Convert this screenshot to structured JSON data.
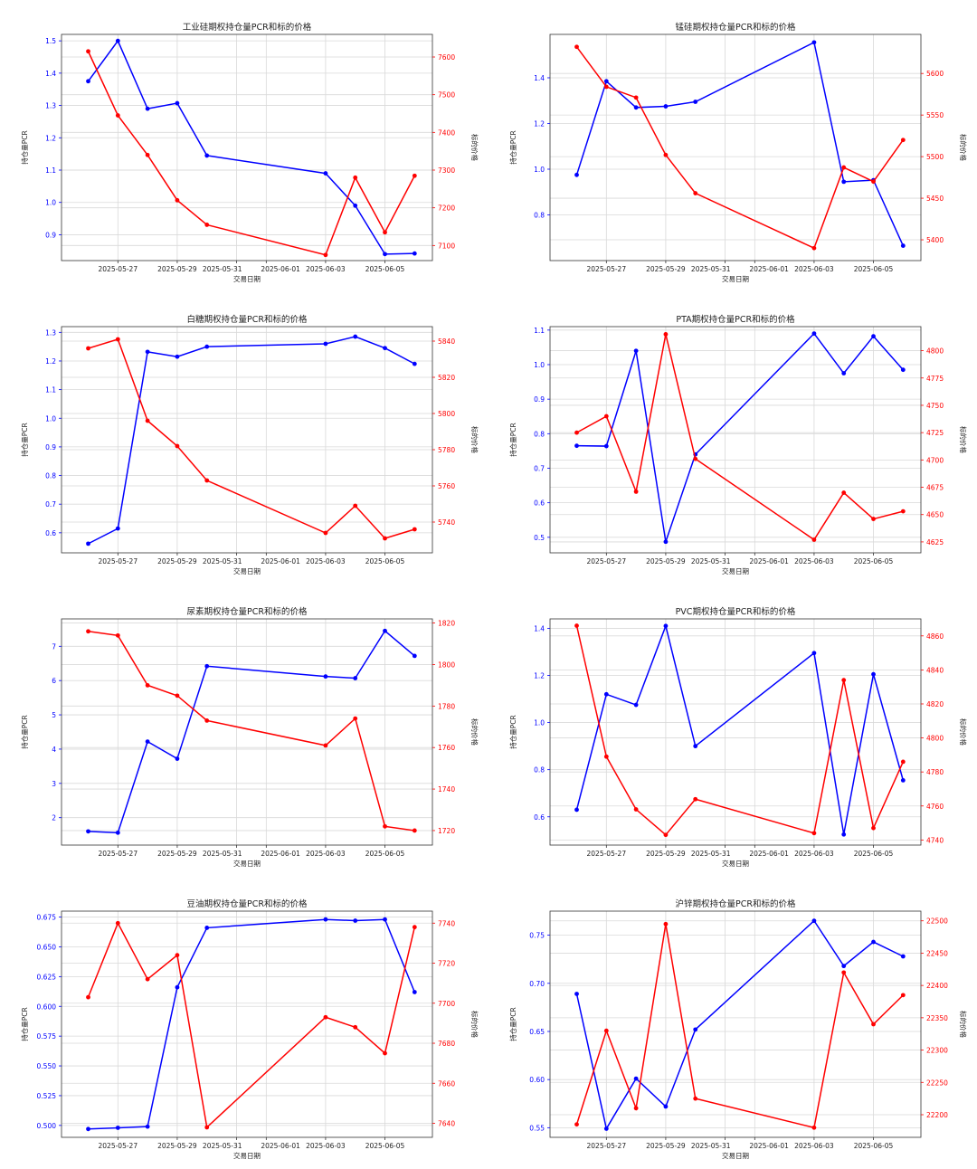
{
  "colors": {
    "pcr": "#0000ff",
    "price": "#ff0000",
    "grid": "#d9d9d9",
    "axis": "#333333"
  },
  "chart_data": [
    {
      "type": "line",
      "title": "工业硅期权持仓量PCR和标的价格",
      "xlabel": "交易日期",
      "ylabel_left": "持仓量PCR",
      "ylabel_right": "标的价格",
      "x": [
        "2025-05-26",
        "2025-05-27",
        "2025-05-28",
        "2025-05-29",
        "2025-05-30",
        "2025-06-03",
        "2025-06-04",
        "2025-06-05",
        "2025-06-06"
      ],
      "x_ticks": [
        "2025-05-27",
        "2025-05-29",
        "2025-05-31",
        "2025-06-01",
        "2025-06-03",
        "2025-06-05"
      ],
      "left_ticks": [
        "0.9",
        "1.0",
        "1.1",
        "1.2",
        "1.3",
        "1.4",
        "1.5"
      ],
      "right_ticks": [
        "7100",
        "7200",
        "7300",
        "7400",
        "7500",
        "7600"
      ],
      "ylim_left": [
        0.82,
        1.52
      ],
      "ylim_right": [
        7060,
        7660
      ],
      "series": [
        {
          "axis": "left",
          "values": [
            1.375,
            1.5,
            1.29,
            1.307,
            1.145,
            1.09,
            0.99,
            0.84,
            0.842
          ]
        },
        {
          "axis": "right",
          "values": [
            7615,
            7445,
            7340,
            7220,
            7155,
            7075,
            7280,
            7135,
            7285
          ]
        }
      ],
      "grid": true
    },
    {
      "type": "line",
      "title": "锰硅期权持仓量PCR和标的价格",
      "xlabel": "交易日期",
      "ylabel_left": "持仓量PCR",
      "ylabel_right": "标的价格",
      "x": [
        "2025-05-26",
        "2025-05-27",
        "2025-05-28",
        "2025-05-29",
        "2025-05-30",
        "2025-06-03",
        "2025-06-04",
        "2025-06-05",
        "2025-06-06"
      ],
      "x_ticks": [
        "2025-05-27",
        "2025-05-29",
        "2025-05-31",
        "2025-06-01",
        "2025-06-03",
        "2025-06-05"
      ],
      "left_ticks": [
        "0.8",
        "1.0",
        "1.2",
        "1.4"
      ],
      "right_ticks": [
        "5400",
        "5450",
        "5500",
        "5550",
        "5600"
      ],
      "ylim_left": [
        0.6,
        1.59
      ],
      "ylim_right": [
        5375,
        5647
      ],
      "series": [
        {
          "axis": "left",
          "values": [
            0.975,
            1.385,
            1.27,
            1.275,
            1.295,
            1.555,
            0.945,
            0.952,
            0.665
          ]
        },
        {
          "axis": "right",
          "values": [
            5632,
            5584,
            5571,
            5502,
            5456,
            5390,
            5487,
            5470,
            5520
          ]
        }
      ],
      "grid": true
    },
    {
      "type": "line",
      "title": "白糖期权持仓量PCR和标的价格",
      "xlabel": "交易日期",
      "ylabel_left": "持仓量PCR",
      "ylabel_right": "标的价格",
      "x": [
        "2025-05-26",
        "2025-05-27",
        "2025-05-28",
        "2025-05-29",
        "2025-05-30",
        "2025-06-03",
        "2025-06-04",
        "2025-06-05",
        "2025-06-06"
      ],
      "x_ticks": [
        "2025-05-27",
        "2025-05-29",
        "2025-05-31",
        "2025-06-01",
        "2025-06-03",
        "2025-06-05"
      ],
      "left_ticks": [
        "0.6",
        "0.7",
        "0.8",
        "0.9",
        "1.0",
        "1.1",
        "1.2",
        "1.3"
      ],
      "right_ticks": [
        "5740",
        "5760",
        "5780",
        "5800",
        "5820",
        "5840"
      ],
      "ylim_left": [
        0.53,
        1.32
      ],
      "ylim_right": [
        5723,
        5848
      ],
      "series": [
        {
          "axis": "left",
          "values": [
            0.562,
            0.615,
            1.232,
            1.215,
            1.25,
            1.26,
            1.285,
            1.245,
            1.19
          ]
        },
        {
          "axis": "right",
          "values": [
            5836,
            5841,
            5796,
            5782,
            5763,
            5734,
            5749,
            5731,
            5736
          ]
        }
      ],
      "grid": true
    },
    {
      "type": "line",
      "title": "PTA期权持仓量PCR和标的价格",
      "xlabel": "交易日期",
      "ylabel_left": "持仓量PCR",
      "ylabel_right": "标的价格",
      "x": [
        "2025-05-26",
        "2025-05-27",
        "2025-05-28",
        "2025-05-29",
        "2025-05-30",
        "2025-06-03",
        "2025-06-04",
        "2025-06-05",
        "2025-06-06"
      ],
      "x_ticks": [
        "2025-05-27",
        "2025-05-29",
        "2025-05-31",
        "2025-06-01",
        "2025-06-03",
        "2025-06-05"
      ],
      "left_ticks": [
        "0.5",
        "0.6",
        "0.7",
        "0.8",
        "0.9",
        "1.0",
        "1.1"
      ],
      "right_ticks": [
        "4625",
        "4650",
        "4675",
        "4700",
        "4725",
        "4750",
        "4775",
        "4800"
      ],
      "ylim_left": [
        0.455,
        1.11
      ],
      "ylim_right": [
        4615,
        4822
      ],
      "series": [
        {
          "axis": "left",
          "values": [
            0.765,
            0.764,
            1.04,
            0.487,
            0.74,
            1.09,
            0.975,
            1.082,
            0.985
          ]
        },
        {
          "axis": "right",
          "values": [
            4725,
            4740,
            4671,
            4815,
            4701,
            4627,
            4670,
            4646,
            4653
          ]
        }
      ],
      "grid": true
    },
    {
      "type": "line",
      "title": "尿素期权持仓量PCR和标的价格",
      "xlabel": "交易日期",
      "ylabel_left": "持仓量PCR",
      "ylabel_right": "标的价格",
      "x": [
        "2025-05-26",
        "2025-05-27",
        "2025-05-28",
        "2025-05-29",
        "2025-05-30",
        "2025-06-03",
        "2025-06-04",
        "2025-06-05",
        "2025-06-06"
      ],
      "x_ticks": [
        "2025-05-27",
        "2025-05-29",
        "2025-05-31",
        "2025-06-01",
        "2025-06-03",
        "2025-06-05"
      ],
      "left_ticks": [
        "2",
        "3",
        "4",
        "5",
        "6",
        "7"
      ],
      "right_ticks": [
        "1720",
        "1740",
        "1760",
        "1780",
        "1800",
        "1820"
      ],
      "ylim_left": [
        1.2,
        7.8
      ],
      "ylim_right": [
        1713,
        1822
      ],
      "series": [
        {
          "axis": "left",
          "values": [
            1.6,
            1.56,
            4.22,
            3.72,
            6.42,
            6.12,
            6.07,
            7.45,
            6.72
          ]
        },
        {
          "axis": "right",
          "values": [
            1816,
            1814,
            1790,
            1785,
            1773,
            1761,
            1774,
            1722,
            1720
          ]
        }
      ],
      "grid": true
    },
    {
      "type": "line",
      "title": "PVC期权持仓量PCR和标的价格",
      "xlabel": "交易日期",
      "ylabel_left": "持仓量PCR",
      "ylabel_right": "标的价格",
      "x": [
        "2025-05-26",
        "2025-05-27",
        "2025-05-28",
        "2025-05-29",
        "2025-05-30",
        "2025-06-03",
        "2025-06-04",
        "2025-06-05",
        "2025-06-06"
      ],
      "x_ticks": [
        "2025-05-27",
        "2025-05-29",
        "2025-05-31",
        "2025-06-01",
        "2025-06-03",
        "2025-06-05"
      ],
      "left_ticks": [
        "0.6",
        "0.8",
        "1.0",
        "1.2",
        "1.4"
      ],
      "right_ticks": [
        "4740",
        "4760",
        "4780",
        "4800",
        "4820",
        "4840",
        "4860"
      ],
      "ylim_left": [
        0.48,
        1.44
      ],
      "ylim_right": [
        4737,
        4870
      ],
      "series": [
        {
          "axis": "left",
          "values": [
            0.63,
            1.12,
            1.075,
            1.41,
            0.9,
            1.295,
            0.525,
            1.205,
            0.755
          ]
        },
        {
          "axis": "right",
          "values": [
            4866,
            4789,
            4758,
            4743,
            4764,
            4744,
            4834,
            4747,
            4786
          ]
        }
      ],
      "grid": true
    },
    {
      "type": "line",
      "title": "豆油期权持仓量PCR和标的价格",
      "xlabel": "交易日期",
      "ylabel_left": "持仓量PCR",
      "ylabel_right": "标的价格",
      "x": [
        "2025-05-26",
        "2025-05-27",
        "2025-05-28",
        "2025-05-29",
        "2025-05-30",
        "2025-06-03",
        "2025-06-04",
        "2025-06-05",
        "2025-06-06"
      ],
      "x_ticks": [
        "2025-05-27",
        "2025-05-29",
        "2025-05-31",
        "2025-06-01",
        "2025-06-03",
        "2025-06-05"
      ],
      "left_ticks": [
        "0.500",
        "0.525",
        "0.550",
        "0.575",
        "0.600",
        "0.625",
        "0.650",
        "0.675"
      ],
      "right_ticks": [
        "7640",
        "7660",
        "7680",
        "7700",
        "7720",
        "7740"
      ],
      "ylim_left": [
        0.49,
        0.68
      ],
      "ylim_right": [
        7633,
        7746
      ],
      "series": [
        {
          "axis": "left",
          "values": [
            0.497,
            0.498,
            0.499,
            0.616,
            0.666,
            0.673,
            0.672,
            0.673,
            0.612
          ]
        },
        {
          "axis": "right",
          "values": [
            7703,
            7740,
            7712,
            7724,
            7638,
            7693,
            7688,
            7675,
            7738
          ]
        }
      ],
      "grid": true
    },
    {
      "type": "line",
      "title": "沪锌期权持仓量PCR和标的价格",
      "xlabel": "交易日期",
      "ylabel_left": "持仓量PCR",
      "ylabel_right": "标的价格",
      "x": [
        "2025-05-26",
        "2025-05-27",
        "2025-05-28",
        "2025-05-29",
        "2025-05-30",
        "2025-06-03",
        "2025-06-04",
        "2025-06-05",
        "2025-06-06"
      ],
      "x_ticks": [
        "2025-05-27",
        "2025-05-29",
        "2025-05-31",
        "2025-06-01",
        "2025-06-03",
        "2025-06-05"
      ],
      "left_ticks": [
        "0.55",
        "0.60",
        "0.65",
        "0.70",
        "0.75"
      ],
      "right_ticks": [
        "22200",
        "22250",
        "22300",
        "22350",
        "22400",
        "22450",
        "22500"
      ],
      "ylim_left": [
        0.54,
        0.775
      ],
      "ylim_right": [
        22165,
        22515
      ],
      "series": [
        {
          "axis": "left",
          "values": [
            0.689,
            0.549,
            0.601,
            0.572,
            0.652,
            0.765,
            0.718,
            0.743,
            0.728
          ]
        },
        {
          "axis": "right",
          "values": [
            22185,
            22330,
            22210,
            22495,
            22225,
            22180,
            22420,
            22340,
            22385
          ]
        }
      ],
      "grid": true
    }
  ]
}
